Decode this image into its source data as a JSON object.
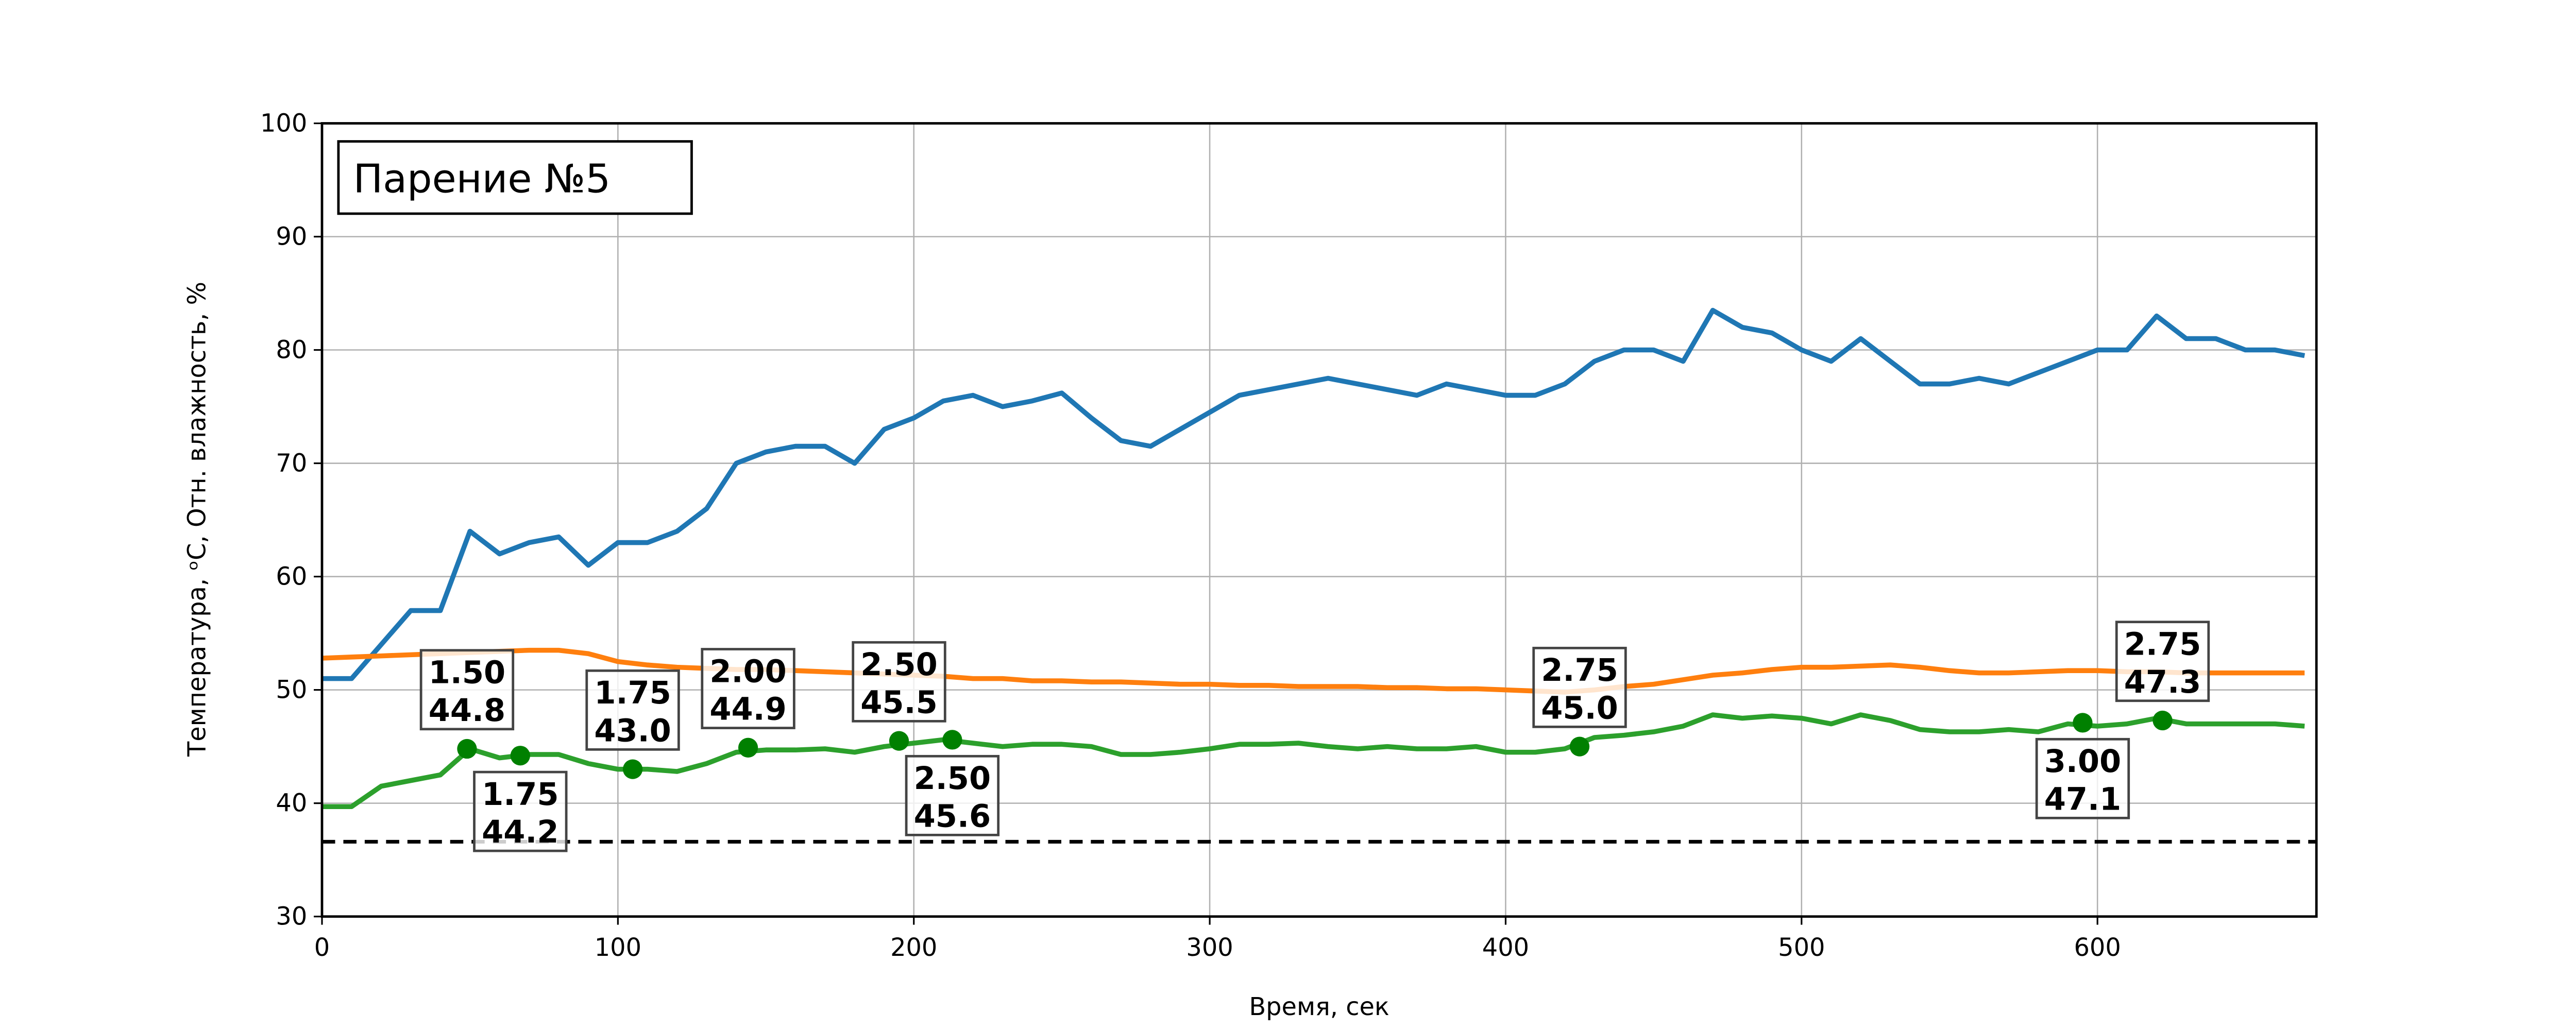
{
  "chart_data": {
    "type": "line",
    "title": "Парение №5",
    "xlabel": "Время, сек",
    "ylabel": "Температура, ᵒC, Отн. влажность, %",
    "x": [
      0,
      10,
      20,
      30,
      40,
      50,
      60,
      70,
      80,
      90,
      100,
      110,
      120,
      130,
      140,
      150,
      160,
      170,
      180,
      190,
      200,
      210,
      220,
      230,
      240,
      250,
      260,
      270,
      280,
      290,
      300,
      310,
      320,
      330,
      340,
      350,
      360,
      370,
      380,
      390,
      400,
      410,
      420,
      430,
      440,
      450,
      460,
      470,
      480,
      490,
      500,
      510,
      520,
      530,
      540,
      550,
      560,
      570,
      580,
      590,
      600,
      610,
      620,
      630,
      640,
      650,
      660,
      670
    ],
    "series": [
      {
        "color": "#1f77b4",
        "values": [
          51,
          51,
          54,
          57,
          57,
          64,
          62,
          63,
          63.5,
          61,
          63,
          63,
          64,
          66,
          70,
          71,
          71.5,
          71.5,
          70,
          73,
          74,
          75.5,
          76,
          75,
          75.5,
          76.2,
          74,
          72,
          71.5,
          73,
          74.5,
          76,
          76.5,
          77,
          77.5,
          77,
          76.5,
          76,
          77,
          76.5,
          76,
          76,
          77,
          79,
          80,
          80,
          79,
          83.5,
          82,
          81.5,
          80,
          79,
          81,
          79,
          77,
          77,
          77.5,
          77,
          78,
          79,
          80,
          80,
          83,
          81,
          81,
          80,
          80,
          79.5
        ]
      },
      {
        "color": "#ff7f0e",
        "values": [
          52.8,
          52.9,
          53,
          53.1,
          53.2,
          53.3,
          53.4,
          53.5,
          53.5,
          53.2,
          52.5,
          52.2,
          52,
          51.9,
          51.8,
          51.8,
          51.7,
          51.6,
          51.5,
          51.4,
          51.3,
          51.2,
          51,
          51,
          50.8,
          50.8,
          50.7,
          50.7,
          50.6,
          50.5,
          50.5,
          50.4,
          50.4,
          50.3,
          50.3,
          50.3,
          50.2,
          50.2,
          50.1,
          50.1,
          50,
          49.9,
          49.8,
          50,
          50.3,
          50.5,
          50.9,
          51.3,
          51.5,
          51.8,
          52,
          52,
          52.1,
          52.2,
          52,
          51.7,
          51.5,
          51.5,
          51.6,
          51.7,
          51.7,
          51.6,
          51.6,
          51.5,
          51.5,
          51.5,
          51.5,
          51.5
        ]
      },
      {
        "color": "#2ca02c",
        "values": [
          39.7,
          39.7,
          41.5,
          42,
          42.5,
          44.8,
          44,
          44.3,
          44.3,
          43.5,
          43,
          43,
          42.8,
          43.5,
          44.5,
          44.7,
          44.7,
          44.8,
          44.5,
          45,
          45.3,
          45.6,
          45.3,
          45,
          45.2,
          45.2,
          45,
          44.3,
          44.3,
          44.5,
          44.8,
          45.2,
          45.2,
          45.3,
          45,
          44.8,
          45,
          44.8,
          44.8,
          45,
          44.5,
          44.5,
          44.8,
          45.8,
          46,
          46.3,
          46.8,
          47.8,
          47.5,
          47.7,
          47.5,
          47,
          47.8,
          47.3,
          46.5,
          46.3,
          46.3,
          46.5,
          46.3,
          47,
          46.8,
          47,
          47.5,
          47,
          47,
          47,
          47,
          46.8
        ]
      }
    ],
    "hline": {
      "value": 36.6,
      "color": "#000000"
    },
    "markers": {
      "color": "#008000",
      "x": [
        49,
        67,
        105,
        144,
        195,
        213,
        425,
        595,
        622
      ],
      "values": [
        44.8,
        44.2,
        43.0,
        44.9,
        45.5,
        45.6,
        45.0,
        47.1,
        47.3
      ],
      "value_labels": [
        "44.8",
        "44.2",
        "43.0",
        "44.9",
        "45.5",
        "45.6",
        "45.0",
        "47.1",
        "47.3"
      ],
      "texts": [
        "1.50",
        "1.75",
        "1.75",
        "2.00",
        "2.50",
        "2.50",
        "2.75",
        "3.00",
        "2.75"
      ],
      "label_side": [
        "above",
        "below",
        "above",
        "above",
        "above",
        "below",
        "above",
        "below",
        "above"
      ]
    },
    "xlim": [
      0,
      674
    ],
    "ylim": [
      30,
      100
    ],
    "xticks": [
      0,
      100,
      200,
      300,
      400,
      500,
      600
    ],
    "yticks": [
      30,
      40,
      50,
      60,
      70,
      80,
      90,
      100
    ],
    "grid": true
  }
}
